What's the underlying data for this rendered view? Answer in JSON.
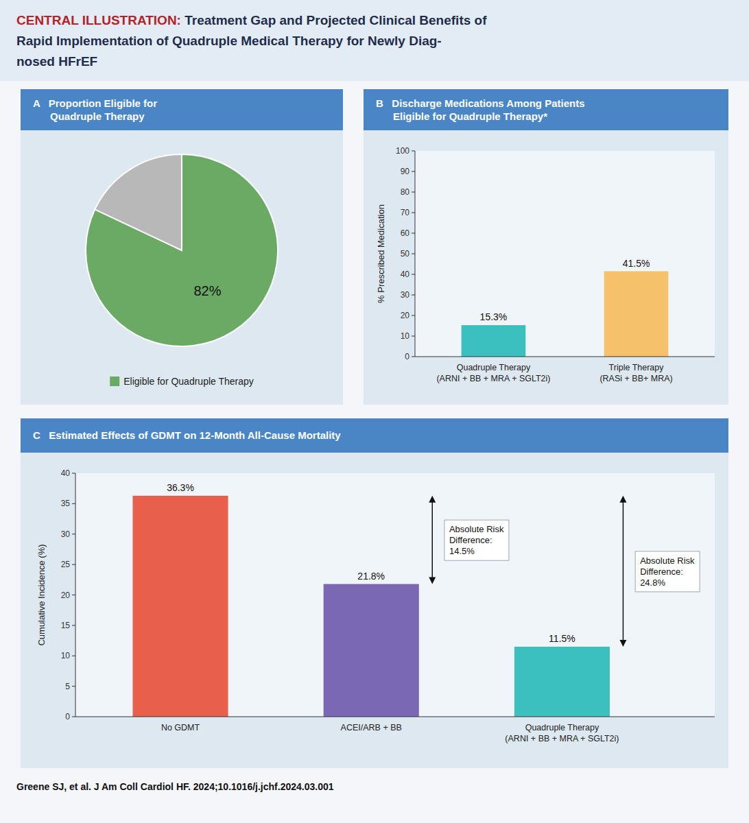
{
  "title": "CENTRAL ILLUSTRATION: Treatment Gap and Projected Clinical Benefits of\nRapid Implementation of Quadruple Medical Therapy for Newly Diag-\nnosed HFrEF",
  "annotations": [
    "Greene SJ, et al. J Am Coll Cardiol HF. 2024;10.1016/j.jchf.2024.03.001"
  ],
  "chart_data": [
    {
      "type": "pie",
      "title": "A   Proportion Eligible for\n      Quadruple Therapy",
      "categories": [
        "Eligible for Quadruple Therapy",
        null
      ],
      "values": [
        82,
        18
      ],
      "colors": [
        "#6aaa64",
        "#b8b8b8"
      ],
      "value_labels": [
        "82%",
        null
      ],
      "data_labels": true,
      "legend": "bottom"
    },
    {
      "type": "bar",
      "title": "B   Discharge Medications Among Patients\n      Eligible for Quadruple Therapy*",
      "categories": [
        "Quadruple Therapy\n(ARNI + BB + MRA + SGLT2i)",
        "Triple Therapy\n(RASi + BB+ MRA)"
      ],
      "values": [
        15.3,
        41.5
      ],
      "colors": [
        "#3bbfbf",
        "#f5c26b"
      ],
      "value_labels": [
        "15.3%",
        "41.5%"
      ],
      "data_labels": true,
      "ylabel": "% Prescribed Medication",
      "ylim": [
        0,
        100
      ],
      "yticks": [
        0,
        10,
        20,
        30,
        40,
        50,
        60,
        70,
        80,
        90,
        100
      ],
      "grid": false
    },
    {
      "type": "bar",
      "title": "C   Estimated Effects of GDMT on 12-Month All-Cause Mortality",
      "categories": [
        "No GDMT",
        "ACEI/ARB + BB",
        "Quadruple Therapy\n(ARNI + BB + MRA + SGLT2i)"
      ],
      "values": [
        36.3,
        21.8,
        11.5
      ],
      "colors": [
        "#e8604c",
        "#7b68b5",
        "#3bbfbf"
      ],
      "value_labels": [
        "36.3%",
        "21.8%",
        "11.5%"
      ],
      "data_labels": true,
      "ylabel": "Cumulative Incidence (%)",
      "ylim": [
        0,
        40
      ],
      "yticks": [
        0,
        5,
        10,
        15,
        20,
        25,
        30,
        35,
        40
      ],
      "grid": false,
      "annotations": [
        "Absolute Risk\nDifference:\n14.5%",
        "Absolute Risk\nDifference:\n24.8%"
      ]
    }
  ]
}
